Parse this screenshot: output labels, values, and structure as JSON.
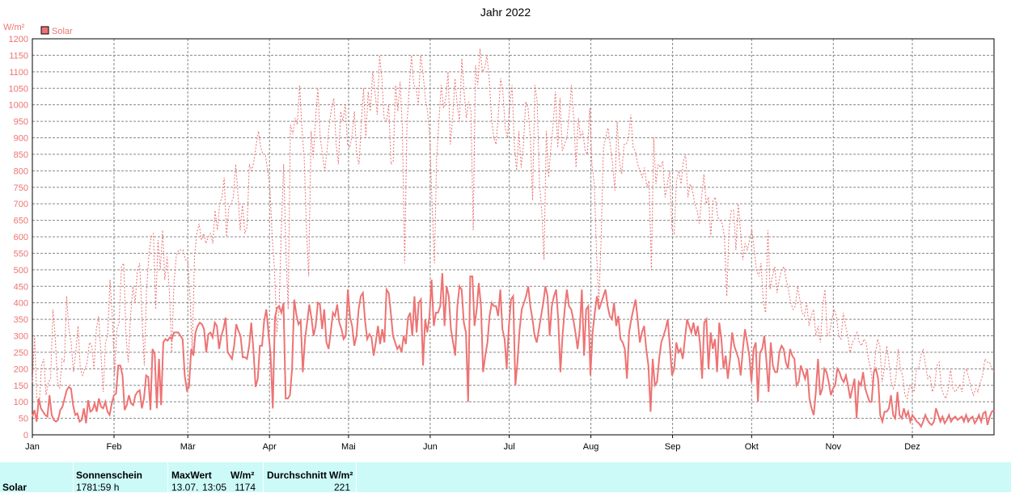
{
  "chart_data": {
    "type": "line",
    "title": "Jahr 2022",
    "ylabel": "W/m²",
    "ylim": [
      0,
      1200
    ],
    "yticks": [
      0,
      50,
      100,
      150,
      200,
      250,
      300,
      350,
      400,
      450,
      500,
      550,
      600,
      650,
      700,
      750,
      800,
      850,
      900,
      950,
      1000,
      1050,
      1100,
      1150,
      1200
    ],
    "months": [
      "Jan",
      "Feb",
      "Mär",
      "Apr",
      "Mai",
      "Jun",
      "Jul",
      "Aug",
      "Sep",
      "Okt",
      "Nov",
      "Dez"
    ],
    "month_start_days": [
      1,
      32,
      60,
      91,
      121,
      152,
      182,
      213,
      244,
      274,
      305,
      335
    ],
    "days_in_year": 365,
    "grid": true,
    "legend": "top-left",
    "legend_label": "Solar",
    "color": "#ee7373",
    "series": [
      {
        "role": "daily-mean",
        "style": "solid",
        "values": [
          55,
          75,
          40,
          110,
          80,
          70,
          60,
          55,
          120,
          60,
          45,
          40,
          45,
          75,
          85,
          110,
          135,
          145,
          140,
          90,
          60,
          65,
          40,
          45,
          80,
          35,
          105,
          70,
          75,
          95,
          70,
          110,
          85,
          80,
          100,
          70,
          60,
          95,
          120,
          125,
          210,
          210,
          180,
          75,
          90,
          120,
          95,
          90,
          120,
          130,
          135,
          80,
          110,
          180,
          175,
          75,
          260,
          245,
          80,
          230,
          90,
          280,
          290,
          285,
          295,
          290,
          310,
          310,
          310,
          300,
          290,
          180,
          135,
          145,
          260,
          240,
          310,
          330,
          340,
          335,
          320,
          250,
          305,
          310,
          295,
          340,
          330,
          260,
          300,
          320,
          355,
          250,
          240,
          230,
          270,
          335,
          315,
          300,
          235,
          235,
          230,
          270,
          340,
          255,
          145,
          170,
          270,
          270,
          345,
          380,
          310,
          240,
          80,
          355,
          385,
          390,
          370,
          400,
          110,
          110,
          120,
          200,
          410,
          365,
          335,
          345,
          190,
          290,
          340,
          395,
          355,
          300,
          330,
          400,
          395,
          320,
          380,
          280,
          260,
          310,
          370,
          360,
          395,
          340,
          320,
          290,
          300,
          440,
          355,
          330,
          270,
          300,
          380,
          420,
          430,
          345,
          290,
          305,
          295,
          240,
          280,
          330,
          275,
          320,
          280,
          440,
          430,
          370,
          300,
          280,
          260,
          270,
          250,
          300,
          275,
          355,
          370,
          300,
          420,
          310,
          400,
          410,
          210,
          350,
          310,
          360,
          470,
          330,
          370,
          370,
          390,
          490,
          330,
          450,
          420,
          320,
          280,
          240,
          390,
          450,
          440,
          340,
          310,
          100,
          480,
          480,
          330,
          380,
          460,
          390,
          190,
          240,
          280,
          360,
          400,
          390,
          390,
          360,
          440,
          320,
          290,
          200,
          330,
          410,
          420,
          150,
          220,
          320,
          380,
          400,
          420,
          450,
          390,
          350,
          300,
          280,
          320,
          360,
          400,
          450,
          420,
          300,
          390,
          420,
          440,
          350,
          190,
          300,
          380,
          440,
          390,
          380,
          350,
          310,
          260,
          320,
          440,
          240,
          380,
          390,
          180,
          310,
          370,
          420,
          380,
          400,
          420,
          440,
          390,
          360,
          350,
          400,
          330,
          360,
          290,
          280,
          260,
          170,
          310,
          350,
          380,
          410,
          350,
          280,
          310,
          330,
          260,
          210,
          70,
          230,
          150,
          160,
          230,
          280,
          300,
          320,
          350,
          270,
          180,
          200,
          280,
          250,
          260,
          230,
          290,
          350,
          330,
          310,
          340,
          300,
          330,
          280,
          170,
          340,
          350,
          200,
          310,
          260,
          290,
          190,
          340,
          290,
          200,
          240,
          170,
          230,
          310,
          270,
          250,
          230,
          180,
          260,
          320,
          280,
          240,
          160,
          260,
          280,
          100,
          250,
          260,
          300,
          220,
          130,
          280,
          210,
          190,
          190,
          250,
          270,
          260,
          220,
          200,
          260,
          240,
          230,
          150,
          160,
          210,
          190,
          170,
          200,
          110,
          80,
          60,
          130,
          230,
          120,
          140,
          200,
          190,
          160,
          120,
          140,
          150,
          200,
          190,
          170,
          160,
          180,
          150,
          110,
          140,
          170,
          50,
          160,
          150,
          190,
          140,
          120,
          100,
          100,
          190,
          200,
          170,
          60,
          40,
          70,
          70,
          80,
          120,
          60,
          50,
          130,
          60,
          50,
          80,
          55,
          70,
          40,
          60,
          50,
          40,
          35,
          25,
          40,
          60,
          45,
          35,
          30,
          40,
          80,
          60,
          40,
          55,
          35,
          45,
          60,
          40,
          50,
          55,
          45,
          50,
          55,
          40,
          60,
          40,
          50,
          55,
          35,
          45,
          60,
          40,
          65,
          70,
          30,
          55,
          70,
          75
        ]
      },
      {
        "role": "daily-max",
        "style": "dashed",
        "values": [
          160,
          300,
          110,
          90,
          210,
          230,
          120,
          160,
          170,
          380,
          300,
          160,
          140,
          230,
          220,
          420,
          320,
          280,
          190,
          250,
          330,
          200,
          180,
          200,
          220,
          280,
          270,
          200,
          320,
          360,
          250,
          130,
          280,
          300,
          470,
          360,
          180,
          320,
          340,
          510,
          520,
          300,
          220,
          360,
          450,
          400,
          500,
          520,
          360,
          210,
          440,
          540,
          600,
          610,
          380,
          590,
          500,
          620,
          470,
          540,
          430,
          250,
          460,
          540,
          560,
          560,
          560,
          530,
          530,
          420,
          250,
          540,
          610,
          640,
          590,
          610,
          580,
          600,
          610,
          580,
          680,
          620,
          700,
          720,
          780,
          600,
          690,
          700,
          720,
          820,
          730,
          620,
          700,
          610,
          630,
          820,
          800,
          830,
          880,
          920,
          870,
          850,
          850,
          800,
          750,
          600,
          500,
          310,
          380,
          620,
          820,
          560,
          380,
          940,
          910,
          960,
          940,
          1060,
          930,
          840,
          620,
          480,
          920,
          840,
          960,
          1050,
          900,
          850,
          800,
          860,
          940,
          990,
          1020,
          880,
          820,
          980,
          950,
          1000,
          880,
          870,
          910,
          980,
          850,
          820,
          940,
          1050,
          900,
          1040,
          980,
          1100,
          1040,
          970,
          1150,
          1080,
          960,
          950,
          1000,
          820,
          830,
          1060,
          980,
          1070,
          930,
          520,
          940,
          1050,
          1150,
          1060,
          1050,
          1000,
          1150,
          1100,
          1020,
          980,
          900,
          700,
          520,
          840,
          950,
          1060,
          990,
          1020,
          1100,
          880,
          960,
          1080,
          1000,
          950,
          1140,
          1040,
          960,
          1010,
          980,
          620,
          1120,
          1060,
          1170,
          1100,
          1110,
          1150,
          1080,
          960,
          900,
          880,
          970,
          1080,
          1040,
          930,
          900,
          1000,
          1060,
          880,
          800,
          920,
          810,
          880,
          1010,
          990,
          900,
          710,
          1060,
          1010,
          760,
          680,
          530,
          920,
          780,
          870,
          940,
          1040,
          870,
          1020,
          860,
          880,
          900,
          970,
          1060,
          960,
          810,
          960,
          900,
          920,
          860,
          850,
          990,
          820,
          760,
          550,
          400,
          590,
          870,
          900,
          930,
          880,
          820,
          740,
          950,
          830,
          790,
          880,
          880,
          900,
          970,
          870,
          860,
          820,
          800,
          780,
          810,
          750,
          770,
          500,
          900,
          760,
          820,
          810,
          830,
          720,
          760,
          800,
          620,
          610,
          770,
          800,
          760,
          830,
          850,
          720,
          760,
          740,
          700,
          680,
          640,
          720,
          790,
          700,
          720,
          600,
          710,
          720,
          660,
          650,
          640,
          600,
          420,
          620,
          680,
          680,
          560,
          700,
          620,
          530,
          580,
          560,
          590,
          620,
          560,
          500,
          480,
          520,
          400,
          370,
          620,
          440,
          480,
          510,
          430,
          470,
          500,
          510,
          470,
          440,
          400,
          380,
          390,
          450,
          410,
          370,
          360,
          400,
          330,
          360,
          380,
          300,
          330,
          280,
          390,
          440,
          300,
          310,
          350,
          380,
          360,
          300,
          290,
          370,
          330,
          300,
          250,
          280,
          290,
          310,
          280,
          270,
          290,
          280,
          230,
          200,
          140,
          240,
          290,
          270,
          160,
          200,
          270,
          220,
          160,
          140,
          170,
          260,
          200,
          180,
          120,
          110,
          150,
          140,
          130,
          200,
          200,
          240,
          260,
          210,
          170,
          180,
          130,
          150,
          210,
          220,
          140,
          120,
          110,
          140,
          200,
          140,
          130,
          140,
          150,
          130,
          190,
          200,
          170,
          140,
          120,
          140,
          130,
          160,
          180,
          230,
          220,
          220,
          200,
          190
        ]
      }
    ]
  },
  "footer": {
    "row_label": "Solar",
    "columns": [
      {
        "header": "Sonnenschein",
        "value": "1781:59 h"
      },
      {
        "header": "MaxWert",
        "unit": "W/m²",
        "date": "13.07.",
        "time": "13:05",
        "value": "1174"
      },
      {
        "header": "Durchschnitt",
        "unit": "W/m²",
        "value": "221"
      }
    ]
  }
}
